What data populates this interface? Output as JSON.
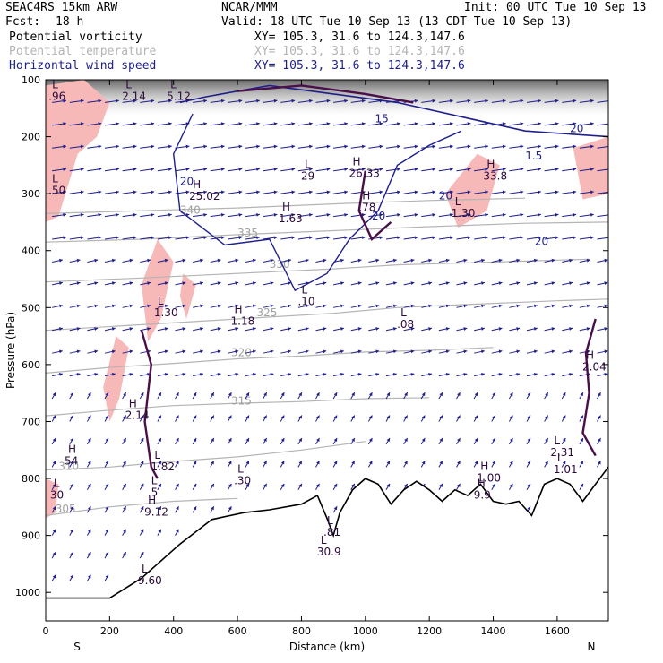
{
  "header": {
    "model": "SEAC4RS 15km ARW",
    "org": "NCAR/MMM",
    "init": "Init: 00 UTC Tue 10 Sep 13",
    "fcst_label": "Fcst:",
    "fcst_value": "18 h",
    "valid": "Valid: 18 UTC Tue 10 Sep 13 (13 CDT Tue 10 Sep 13)"
  },
  "legend": [
    {
      "name": "Potential vorticity",
      "xy": "",
      "color": "#000000"
    },
    {
      "name": "Potential temperature",
      "xy": "XY= 105.3, 31.6 to 124.3,147.6",
      "color": "#b4b4b4"
    },
    {
      "name": "Horizontal wind speed",
      "xy": "XY= 105.3, 31.6 to 124.3,147.6",
      "color": "#1e1e8c"
    }
  ],
  "xy_pv": "XY= 105.3, 31.6 to 124.3,147.6",
  "chart_data": {
    "type": "cross-section",
    "xlabel": "Distance (km)",
    "ylabel": "Pressure (hPa)",
    "xlim": [
      0,
      1760
    ],
    "ylim": [
      1050,
      100
    ],
    "x_ticks": [
      "0",
      "200",
      "400",
      "600",
      "800",
      "1000",
      "1200",
      "1400",
      "1600"
    ],
    "x_tick_values": [
      0,
      200,
      400,
      600,
      800,
      1000,
      1200,
      1400,
      1600
    ],
    "y_ticks": [
      "100",
      "200",
      "300",
      "400",
      "500",
      "600",
      "700",
      "800",
      "900",
      "1000"
    ],
    "y_tick_values": [
      100,
      200,
      300,
      400,
      500,
      600,
      700,
      800,
      900,
      1000
    ],
    "endpoints": {
      "left": "S",
      "right": "N"
    },
    "terrain": [
      [
        0,
        1010
      ],
      [
        200,
        1010
      ],
      [
        300,
        975
      ],
      [
        420,
        915
      ],
      [
        520,
        872
      ],
      [
        620,
        860
      ],
      [
        700,
        855
      ],
      [
        800,
        845
      ],
      [
        850,
        830
      ],
      [
        880,
        870
      ],
      [
        900,
        900
      ],
      [
        920,
        860
      ],
      [
        960,
        820
      ],
      [
        1000,
        800
      ],
      [
        1040,
        810
      ],
      [
        1080,
        845
      ],
      [
        1120,
        820
      ],
      [
        1160,
        805
      ],
      [
        1200,
        820
      ],
      [
        1240,
        840
      ],
      [
        1280,
        820
      ],
      [
        1320,
        830
      ],
      [
        1360,
        810
      ],
      [
        1400,
        840
      ],
      [
        1440,
        845
      ],
      [
        1480,
        840
      ],
      [
        1520,
        865
      ],
      [
        1560,
        810
      ],
      [
        1600,
        800
      ],
      [
        1640,
        810
      ],
      [
        1680,
        840
      ],
      [
        1720,
        810
      ],
      [
        1760,
        780
      ]
    ],
    "isentropes": [
      {
        "label": "305",
        "points": [
          [
            0,
            865
          ],
          [
            200,
            850
          ],
          [
            400,
            840
          ],
          [
            600,
            835
          ]
        ],
        "label_at": [
          30,
          860
        ]
      },
      {
        "label": "310",
        "points": [
          [
            0,
            785
          ],
          [
            200,
            780
          ],
          [
            400,
            770
          ],
          [
            600,
            762
          ],
          [
            800,
            750
          ],
          [
            1000,
            735
          ]
        ],
        "label_at": [
          40,
          785
        ]
      },
      {
        "label": "315",
        "points": [
          [
            0,
            690
          ],
          [
            200,
            680
          ],
          [
            400,
            672
          ],
          [
            600,
            668
          ],
          [
            800,
            665
          ],
          [
            1000,
            660
          ],
          [
            1200,
            658
          ]
        ],
        "label_at": [
          580,
          670
        ]
      },
      {
        "label": "320",
        "points": [
          [
            0,
            615
          ],
          [
            200,
            605
          ],
          [
            400,
            598
          ],
          [
            600,
            590
          ],
          [
            800,
            585
          ],
          [
            1000,
            578
          ],
          [
            1200,
            575
          ],
          [
            1400,
            570
          ]
        ],
        "label_at": [
          580,
          585
        ]
      },
      {
        "label": "325",
        "points": [
          [
            0,
            540
          ],
          [
            300,
            530
          ],
          [
            600,
            520
          ],
          [
            900,
            510
          ],
          [
            1100,
            500
          ],
          [
            1300,
            495
          ],
          [
            1600,
            488
          ],
          [
            1760,
            485
          ]
        ],
        "label_at": [
          660,
          515
        ]
      },
      {
        "label": "330",
        "points": [
          [
            0,
            455
          ],
          [
            300,
            448
          ],
          [
            600,
            440
          ],
          [
            900,
            432
          ],
          [
            1100,
            425
          ],
          [
            1400,
            420
          ],
          [
            1700,
            415
          ]
        ],
        "label_at": [
          700,
          430
        ]
      },
      {
        "label": "335",
        "points": [
          [
            0,
            385
          ],
          [
            300,
            380
          ],
          [
            600,
            372
          ],
          [
            900,
            365
          ],
          [
            1200,
            358
          ],
          [
            1500,
            352
          ],
          [
            1760,
            350
          ]
        ],
        "label_at": [
          600,
          375
        ]
      },
      {
        "label": "340",
        "points": [
          [
            0,
            335
          ],
          [
            300,
            330
          ],
          [
            600,
            325
          ],
          [
            900,
            318
          ],
          [
            1200,
            312
          ],
          [
            1500,
            308
          ]
        ],
        "label_at": [
          420,
          335
        ]
      }
    ],
    "pv_labels": [
      {
        "type": "H",
        "value": "2.14",
        "at": [
          260,
          675
        ]
      },
      {
        "type": "H",
        "value": "9.12",
        "at": [
          320,
          845
        ]
      },
      {
        "type": "H",
        "value": "54",
        "at": [
          70,
          755
        ]
      },
      {
        "type": "L",
        "value": "30",
        "at": [
          25,
          815
        ]
      },
      {
        "type": "L",
        "value": "1.30",
        "at": [
          350,
          495
        ]
      },
      {
        "type": "H",
        "value": "1.18",
        "at": [
          590,
          510
        ]
      },
      {
        "type": "L",
        "value": "1.82",
        "at": [
          340,
          765
        ]
      },
      {
        "type": "L",
        "value": ".5",
        "at": [
          330,
          810
        ]
      },
      {
        "type": "L",
        "value": ".30",
        "at": [
          600,
          790
        ]
      },
      {
        "type": "L",
        "value": "9.60",
        "at": [
          300,
          965
        ]
      },
      {
        "type": "H",
        "value": "25.02",
        "at": [
          460,
          290
        ]
      },
      {
        "type": "H",
        "value": "1.63",
        "at": [
          740,
          330
        ]
      },
      {
        "type": "L",
        "value": "29",
        "at": [
          810,
          255
        ]
      },
      {
        "type": "H",
        "value": "26.33",
        "at": [
          960,
          250
        ]
      },
      {
        "type": "H",
        "value": ".78",
        "at": [
          990,
          310
        ]
      },
      {
        "type": "L",
        "value": ".10",
        "at": [
          800,
          475
        ]
      },
      {
        "type": "L",
        "value": ".08",
        "at": [
          1110,
          515
        ]
      },
      {
        "type": "L",
        "value": ".81",
        "at": [
          880,
          880
        ]
      },
      {
        "type": "L",
        "value": "30.9",
        "at": [
          860,
          915
        ]
      },
      {
        "type": "H",
        "value": "9.9",
        "at": [
          1350,
          815
        ]
      },
      {
        "type": "H",
        "value": "1.00",
        "at": [
          1360,
          785
        ]
      },
      {
        "type": "L",
        "value": "1.30",
        "at": [
          1280,
          320
        ]
      },
      {
        "type": "H",
        "value": "33.8",
        "at": [
          1380,
          255
        ]
      },
      {
        "type": "L",
        "value": "2.31",
        "at": [
          1590,
          740
        ]
      },
      {
        "type": "L",
        "value": "1.01",
        "at": [
          1600,
          770
        ]
      },
      {
        "type": "H",
        "value": "2.04",
        "at": [
          1690,
          590
        ]
      },
      {
        "type": "L",
        "value": ".50",
        "at": [
          20,
          280
        ]
      },
      {
        "type": "L",
        "value": ".96",
        "at": [
          20,
          115
        ]
      },
      {
        "type": "L",
        "value": "2.14",
        "at": [
          250,
          115
        ]
      },
      {
        "type": "L",
        "value": "5.12",
        "at": [
          390,
          115
        ]
      }
    ],
    "wind_labels": [
      {
        "value": "20",
        "at": [
          420,
          285
        ]
      },
      {
        "value": "20",
        "at": [
          1020,
          345
        ]
      },
      {
        "value": "20",
        "at": [
          1230,
          310
        ]
      },
      {
        "value": "20",
        "at": [
          1530,
          390
        ]
      },
      {
        "value": "20",
        "at": [
          1640,
          192
        ]
      },
      {
        "value": "15",
        "at": [
          1030,
          175
        ]
      },
      {
        "value": "1.5",
        "at": [
          1500,
          240
        ]
      }
    ]
  }
}
